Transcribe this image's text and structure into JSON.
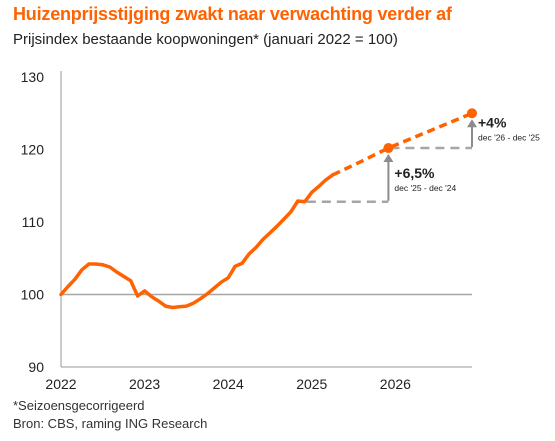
{
  "title": "Huizenprijsstijging zwakt naar verwachting verder af",
  "subtitle": "Prijsindex bestaande koopwoningen* (januari 2022 = 100)",
  "footnotes": {
    "note": "*Seizoensgecorrigeerd",
    "source": "Bron: CBS, raming ING Research"
  },
  "colors": {
    "series": "#ff6200",
    "reference_line": "#a6a6a6",
    "axis": "#999999",
    "arrow": "#8c8c8c"
  },
  "chart_data": {
    "type": "line",
    "ylim": [
      90,
      130
    ],
    "yticks": [
      90,
      100,
      110,
      120,
      130
    ],
    "xlim": [
      "2022-01",
      "2026-12"
    ],
    "xticks": [
      "2022",
      "2023",
      "2024",
      "2025",
      "2026"
    ],
    "grid": false,
    "baseline": 100,
    "series": [
      {
        "style": "solid",
        "points": [
          [
            "2022-01",
            100.0
          ],
          [
            "2022-02",
            101.1
          ],
          [
            "2022-03",
            102.1
          ],
          [
            "2022-04",
            103.4
          ],
          [
            "2022-05",
            104.2
          ],
          [
            "2022-06",
            104.2
          ],
          [
            "2022-07",
            104.1
          ],
          [
            "2022-08",
            103.8
          ],
          [
            "2022-09",
            103.1
          ],
          [
            "2022-10",
            102.5
          ],
          [
            "2022-11",
            101.9
          ],
          [
            "2022-12",
            99.8
          ],
          [
            "2023-01",
            100.5
          ],
          [
            "2023-02",
            99.7
          ],
          [
            "2023-03",
            99.1
          ],
          [
            "2023-04",
            98.4
          ],
          [
            "2023-05",
            98.2
          ],
          [
            "2023-06",
            98.3
          ],
          [
            "2023-07",
            98.4
          ],
          [
            "2023-08",
            98.8
          ],
          [
            "2023-09",
            99.4
          ],
          [
            "2023-10",
            100.1
          ],
          [
            "2023-11",
            100.9
          ],
          [
            "2023-12",
            101.7
          ],
          [
            "2024-01",
            102.3
          ],
          [
            "2024-02",
            103.9
          ],
          [
            "2024-03",
            104.3
          ],
          [
            "2024-04",
            105.6
          ],
          [
            "2024-05",
            106.5
          ],
          [
            "2024-06",
            107.6
          ],
          [
            "2024-07",
            108.5
          ],
          [
            "2024-08",
            109.4
          ],
          [
            "2024-09",
            110.4
          ],
          [
            "2024-10",
            111.4
          ],
          [
            "2024-11",
            112.9
          ],
          [
            "2024-12",
            112.8
          ],
          [
            "2025-01",
            114.1
          ],
          [
            "2025-02",
            114.9
          ],
          [
            "2025-03",
            115.8
          ],
          [
            "2025-04",
            116.5
          ]
        ]
      },
      {
        "style": "dashed",
        "points": [
          [
            "2025-04",
            116.5
          ],
          [
            "2025-08",
            118.3
          ],
          [
            "2025-12",
            120.2
          ],
          [
            "2026-06",
            122.6
          ],
          [
            "2026-12",
            125.0
          ]
        ]
      }
    ],
    "markers": [
      {
        "x": "2025-12",
        "y": 120.2
      },
      {
        "x": "2026-12",
        "y": 125.0
      }
    ],
    "reference_lines": [
      {
        "from": "2024-12",
        "to": "2025-12",
        "y": 112.8
      },
      {
        "from": "2025-12",
        "to": "2026-12",
        "y": 120.2
      }
    ],
    "annotations": [
      {
        "x": "2025-12",
        "from": 112.8,
        "to": 120.2,
        "label": "+6,5%",
        "sublabel": "dec '25 - dec '24"
      },
      {
        "x": "2026-12",
        "from": 120.2,
        "to": 125.0,
        "label": "+4%",
        "sublabel": "dec '26 - dec '25"
      }
    ]
  }
}
